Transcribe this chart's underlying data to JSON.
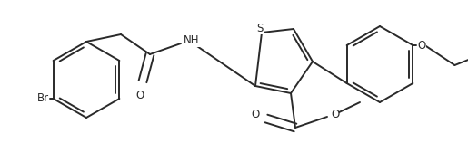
{
  "line_color": "#2a2a2a",
  "bg_color": "#ffffff",
  "line_width": 1.4,
  "font_size": 8.5,
  "figsize": [
    5.15,
    1.79
  ],
  "dpi": 100,
  "xlim": [
    0,
    515
  ],
  "ylim": [
    0,
    179
  ]
}
